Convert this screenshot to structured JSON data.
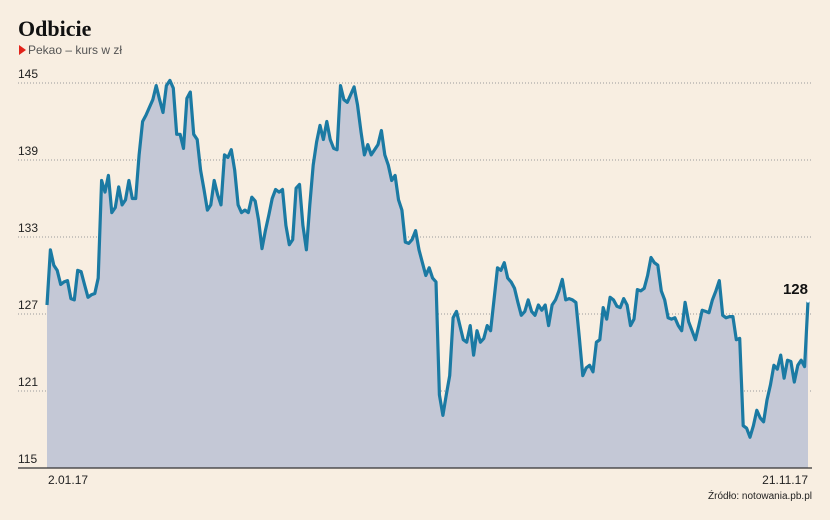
{
  "chart_data": {
    "type": "area",
    "title": "Odbicie",
    "subtitle": "Pekao – kurs w zł",
    "source": "Źródło: notowania.pb.pl",
    "end_label": "128",
    "categories": [
      "2.01.17",
      null,
      null,
      null,
      null,
      null,
      null,
      null,
      null,
      null,
      null,
      null,
      null,
      null,
      null,
      null,
      null,
      null,
      null,
      null,
      null,
      null,
      null,
      null,
      null,
      null,
      null,
      null,
      null,
      null,
      null,
      null,
      null,
      null,
      null,
      null,
      null,
      null,
      null,
      null,
      null,
      null,
      null,
      null,
      null,
      null,
      null,
      null,
      null,
      null,
      null,
      null,
      null,
      null,
      null,
      null,
      null,
      null,
      null,
      null,
      null,
      null,
      null,
      null,
      null,
      null,
      null,
      null,
      null,
      null,
      null,
      null,
      null,
      null,
      null,
      null,
      null,
      null,
      null,
      null,
      null,
      null,
      null,
      null,
      null,
      null,
      null,
      null,
      null,
      null,
      null,
      null,
      null,
      null,
      null,
      null,
      null,
      null,
      null,
      null,
      null,
      null,
      null,
      null,
      null,
      null,
      null,
      null,
      null,
      null,
      null,
      null,
      null,
      null,
      null,
      null,
      null,
      null,
      null,
      null,
      null,
      null,
      null,
      null,
      null,
      null,
      null,
      null,
      null,
      null,
      null,
      null,
      null,
      null,
      null,
      null,
      null,
      null,
      null,
      null,
      null,
      null,
      null,
      null,
      null,
      null,
      null,
      null,
      null,
      null,
      null,
      null,
      null,
      null,
      null,
      null,
      null,
      null,
      null,
      null,
      null,
      null,
      null,
      null,
      null,
      null,
      null,
      null,
      null,
      null,
      null,
      null,
      null,
      null,
      null,
      null,
      null,
      null,
      null,
      null,
      null,
      null,
      null,
      null,
      null,
      null,
      null,
      null,
      null,
      null,
      null,
      null,
      null,
      null,
      null,
      null,
      null,
      null,
      null,
      null,
      null,
      null,
      null,
      null,
      null,
      null,
      null,
      null,
      null,
      null,
      null,
      null,
      null,
      null,
      null,
      null,
      null,
      null,
      null,
      null,
      null,
      null,
      null,
      "21.11.17"
    ],
    "values": [
      127.7,
      132.0,
      130.8,
      130.4,
      129.3,
      129.5,
      129.6,
      128.2,
      128.1,
      130.4,
      130.3,
      129.3,
      128.3,
      128.5,
      128.6,
      129.8,
      137.4,
      136.5,
      137.8,
      134.9,
      135.3,
      136.9,
      135.5,
      135.9,
      137.4,
      136.0,
      136.0,
      139.4,
      142.0,
      142.5,
      143.1,
      143.7,
      144.8,
      143.7,
      142.7,
      144.8,
      145.2,
      144.6,
      141.0,
      141.0,
      139.9,
      143.8,
      144.3,
      141.0,
      140.6,
      138.2,
      136.7,
      135.1,
      135.5,
      137.4,
      136.3,
      135.5,
      139.4,
      139.2,
      139.8,
      138.2,
      135.5,
      134.9,
      135.1,
      134.9,
      136.1,
      135.8,
      134.3,
      132.1,
      133.5,
      134.7,
      136.0,
      136.7,
      136.5,
      136.7,
      133.9,
      132.4,
      132.8,
      136.8,
      137.1,
      133.9,
      132.0,
      135.5,
      138.6,
      140.4,
      141.7,
      140.6,
      142.0,
      140.6,
      139.9,
      139.8,
      144.8,
      143.7,
      143.5,
      144.1,
      144.7,
      143.3,
      141.2,
      139.4,
      140.2,
      139.4,
      139.8,
      140.2,
      141.3,
      139.4,
      138.6,
      137.4,
      137.8,
      135.9,
      135.1,
      132.6,
      132.5,
      132.8,
      133.5,
      132.0,
      131.0,
      130.0,
      130.6,
      129.8,
      129.5,
      120.7,
      119.1,
      120.7,
      122.2,
      126.7,
      127.2,
      126.1,
      125.0,
      124.8,
      126.1,
      123.8,
      125.7,
      124.8,
      125.1,
      126.1,
      125.7,
      128.1,
      130.6,
      130.4,
      131.0,
      129.8,
      129.5,
      129.0,
      127.9,
      126.9,
      127.2,
      128.1,
      127.2,
      126.9,
      127.7,
      127.3,
      127.7,
      126.1,
      127.7,
      128.1,
      128.8,
      129.7,
      128.1,
      128.2,
      128.1,
      127.9,
      125.1,
      122.2,
      122.8,
      123.0,
      122.5,
      124.8,
      125.0,
      127.5,
      126.6,
      128.3,
      128.1,
      127.6,
      127.5,
      128.2,
      127.7,
      126.1,
      126.6,
      128.9,
      128.8,
      129.0,
      130.0,
      131.4,
      131.0,
      130.8,
      128.8,
      128.1,
      126.7,
      126.6,
      126.7,
      126.1,
      125.7,
      127.9,
      126.4,
      125.7,
      125.0,
      126.1,
      127.3,
      127.2,
      127.1,
      128.1,
      128.8,
      129.6,
      126.9,
      126.7,
      126.8,
      126.8,
      125.0,
      125.1,
      118.3,
      118.1,
      117.4,
      118.3,
      119.5,
      118.9,
      118.6,
      120.3,
      121.5,
      123.0,
      122.7,
      123.8,
      122.0,
      123.4,
      123.3,
      121.7,
      123.0,
      123.4,
      122.9,
      128
    ],
    "color": "#1b7aa3",
    "fill": "#c4c8d6",
    "background": "#f8eee1",
    "ylim": [
      115,
      145
    ],
    "yticks": [
      115,
      121,
      127,
      133,
      139,
      145
    ],
    "grid": true
  }
}
